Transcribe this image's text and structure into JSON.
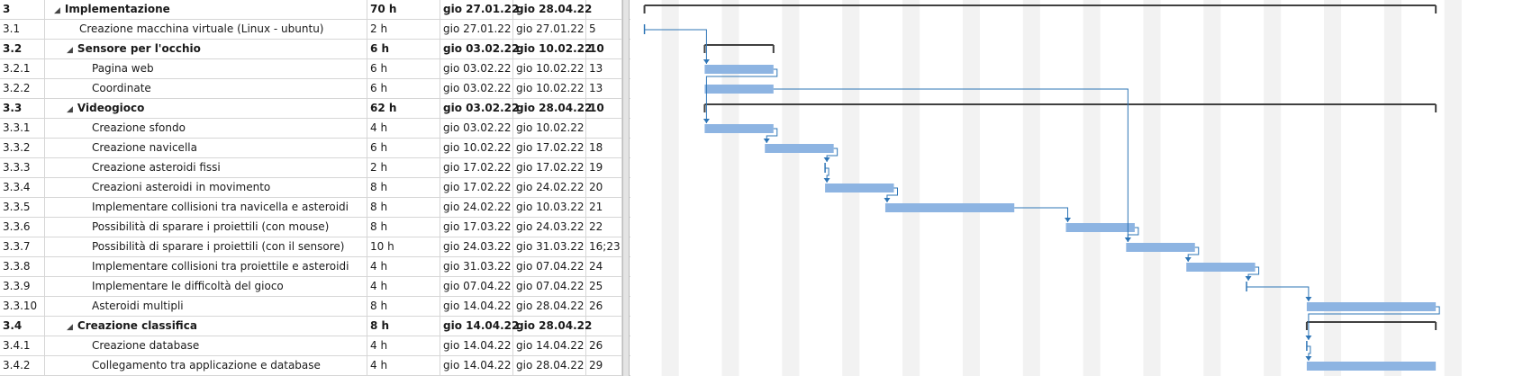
{
  "rows": [
    {
      "wbs": "3",
      "name": "Implementazione",
      "level": 0,
      "summary": true,
      "duration": "70 h",
      "start": "gio 27.01.22",
      "end": "gio 28.04.22",
      "pred": ""
    },
    {
      "wbs": "3.1",
      "name": "Creazione macchina virtuale (Linux - ubuntu)",
      "level": 1,
      "summary": false,
      "duration": "2 h",
      "start": "gio 27.01.22",
      "end": "gio 27.01.22",
      "pred": "5"
    },
    {
      "wbs": "3.2",
      "name": "Sensore per l'occhio",
      "level": 1,
      "summary": true,
      "duration": "6 h",
      "start": "gio 03.02.22",
      "end": "gio 10.02.22",
      "pred": "10"
    },
    {
      "wbs": "3.2.1",
      "name": "Pagina web",
      "level": 2,
      "summary": false,
      "duration": "6 h",
      "start": "gio 03.02.22",
      "end": "gio 10.02.22",
      "pred": "13"
    },
    {
      "wbs": "3.2.2",
      "name": "Coordinate",
      "level": 2,
      "summary": false,
      "duration": "6 h",
      "start": "gio 03.02.22",
      "end": "gio 10.02.22",
      "pred": "13"
    },
    {
      "wbs": "3.3",
      "name": "Videogioco",
      "level": 1,
      "summary": true,
      "duration": "62 h",
      "start": "gio 03.02.22",
      "end": "gio 28.04.22",
      "pred": "10"
    },
    {
      "wbs": "3.3.1",
      "name": "Creazione sfondo",
      "level": 2,
      "summary": false,
      "duration": "4 h",
      "start": "gio 03.02.22",
      "end": "gio 10.02.22",
      "pred": ""
    },
    {
      "wbs": "3.3.2",
      "name": "Creazione navicella",
      "level": 2,
      "summary": false,
      "duration": "6 h",
      "start": "gio 10.02.22",
      "end": "gio 17.02.22",
      "pred": "18"
    },
    {
      "wbs": "3.3.3",
      "name": "Creazione asteroidi fissi",
      "level": 2,
      "summary": false,
      "duration": "2 h",
      "start": "gio 17.02.22",
      "end": "gio 17.02.22",
      "pred": "19"
    },
    {
      "wbs": "3.3.4",
      "name": "Creazioni asteroidi in movimento",
      "level": 2,
      "summary": false,
      "duration": "8 h",
      "start": "gio 17.02.22",
      "end": "gio 24.02.22",
      "pred": "20"
    },
    {
      "wbs": "3.3.5",
      "name": "Implementare collisioni tra navicella e asteroidi",
      "level": 2,
      "summary": false,
      "duration": "8 h",
      "start": "gio 24.02.22",
      "end": "gio 10.03.22",
      "pred": "21"
    },
    {
      "wbs": "3.3.6",
      "name": "Possibilità di sparare i proiettili (con mouse)",
      "level": 2,
      "summary": false,
      "duration": "8 h",
      "start": "gio 17.03.22",
      "end": "gio 24.03.22",
      "pred": "22"
    },
    {
      "wbs": "3.3.7",
      "name": "Possibilità di sparare i proiettili (con il sensore)",
      "level": 2,
      "summary": false,
      "duration": "10 h",
      "start": "gio 24.03.22",
      "end": "gio 31.03.22",
      "pred": "16;23"
    },
    {
      "wbs": "3.3.8",
      "name": "Implementare collisioni tra proiettile e asteroidi",
      "level": 2,
      "summary": false,
      "duration": "4 h",
      "start": "gio 31.03.22",
      "end": "gio 07.04.22",
      "pred": "24"
    },
    {
      "wbs": "3.3.9",
      "name": "Implementare le difficoltà del gioco",
      "level": 2,
      "summary": false,
      "duration": "4 h",
      "start": "gio 07.04.22",
      "end": "gio 07.04.22",
      "pred": "25"
    },
    {
      "wbs": "3.3.10",
      "name": "Asteroidi multipli",
      "level": 2,
      "summary": false,
      "duration": "8 h",
      "start": "gio 14.04.22",
      "end": "gio 28.04.22",
      "pred": "26"
    },
    {
      "wbs": "3.4",
      "name": "Creazione classifica",
      "level": 1,
      "summary": true,
      "duration": "8 h",
      "start": "gio 14.04.22",
      "end": "gio 28.04.22",
      "pred": ""
    },
    {
      "wbs": "3.4.1",
      "name": "Creazione database",
      "level": 2,
      "summary": false,
      "duration": "4 h",
      "start": "gio 14.04.22",
      "end": "gio 14.04.22",
      "pred": "26"
    },
    {
      "wbs": "3.4.2",
      "name": "Collegamento tra applicazione e database",
      "level": 2,
      "summary": false,
      "duration": "4 h",
      "start": "gio 14.04.22",
      "end": "gio 28.04.22",
      "pred": "29"
    }
  ],
  "gantt": {
    "timeline_start": "2022-01-26",
    "timeline_end": "2022-04-30",
    "bars": [
      {
        "row": 0,
        "type": "summary",
        "start": "2022-01-27",
        "end": "2022-04-28"
      },
      {
        "row": 1,
        "type": "milestone",
        "start": "2022-01-27",
        "end": "2022-01-27"
      },
      {
        "row": 2,
        "type": "summary",
        "start": "2022-02-03",
        "end": "2022-02-10"
      },
      {
        "row": 3,
        "type": "task",
        "start": "2022-02-03",
        "end": "2022-02-10"
      },
      {
        "row": 4,
        "type": "task",
        "start": "2022-02-03",
        "end": "2022-02-10"
      },
      {
        "row": 5,
        "type": "summary",
        "start": "2022-02-03",
        "end": "2022-04-28"
      },
      {
        "row": 6,
        "type": "task",
        "start": "2022-02-03",
        "end": "2022-02-10"
      },
      {
        "row": 7,
        "type": "task",
        "start": "2022-02-10",
        "end": "2022-02-17"
      },
      {
        "row": 8,
        "type": "milestone",
        "start": "2022-02-17",
        "end": "2022-02-17"
      },
      {
        "row": 9,
        "type": "task",
        "start": "2022-02-17",
        "end": "2022-02-24"
      },
      {
        "row": 10,
        "type": "task",
        "start": "2022-02-24",
        "end": "2022-03-10"
      },
      {
        "row": 11,
        "type": "task",
        "start": "2022-03-17",
        "end": "2022-03-24"
      },
      {
        "row": 12,
        "type": "task",
        "start": "2022-03-24",
        "end": "2022-03-31"
      },
      {
        "row": 13,
        "type": "task",
        "start": "2022-03-31",
        "end": "2022-04-07"
      },
      {
        "row": 14,
        "type": "milestone",
        "start": "2022-04-07",
        "end": "2022-04-07"
      },
      {
        "row": 15,
        "type": "task",
        "start": "2022-04-14",
        "end": "2022-04-28"
      },
      {
        "row": 16,
        "type": "summary",
        "start": "2022-04-14",
        "end": "2022-04-28"
      },
      {
        "row": 17,
        "type": "milestone",
        "start": "2022-04-14",
        "end": "2022-04-14"
      },
      {
        "row": 18,
        "type": "task",
        "start": "2022-04-14",
        "end": "2022-04-28"
      }
    ],
    "links": [
      {
        "from": 1,
        "to": 3
      },
      {
        "from": 3,
        "to": 6
      },
      {
        "from": 4,
        "to": 12
      },
      {
        "from": 6,
        "to": 7
      },
      {
        "from": 7,
        "to": 8
      },
      {
        "from": 8,
        "to": 9
      },
      {
        "from": 9,
        "to": 10
      },
      {
        "from": 10,
        "to": 11
      },
      {
        "from": 11,
        "to": 12
      },
      {
        "from": 12,
        "to": 13
      },
      {
        "from": 13,
        "to": 14
      },
      {
        "from": 14,
        "to": 15
      },
      {
        "from": 15,
        "to": 17
      },
      {
        "from": 17,
        "to": 18
      }
    ],
    "colors": {
      "task": "#8db4e2",
      "link": "#2e75b6",
      "summary": "#404040",
      "shade": "#f2f2f2",
      "gridline": "#e0e0e0"
    }
  }
}
